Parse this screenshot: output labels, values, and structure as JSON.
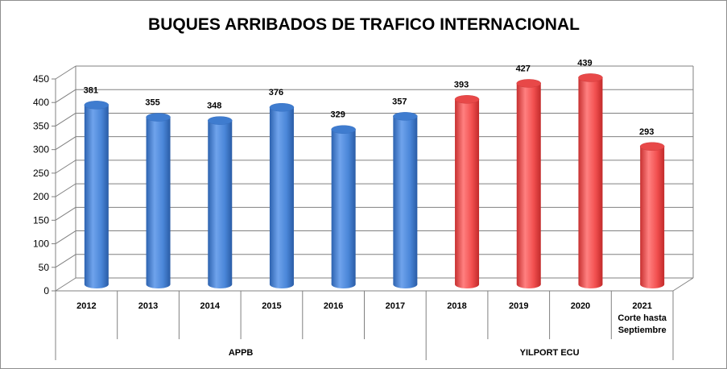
{
  "chart_data": {
    "type": "bar",
    "title": "BUQUES ARRIBADOS DE TRAFICO INTERNACIONAL",
    "categories": [
      "2012",
      "2013",
      "2014",
      "2015",
      "2016",
      "2017",
      "2018",
      "2019",
      "2020",
      "2021 Corte hasta Septiembre"
    ],
    "category_lines": [
      [
        "2012"
      ],
      [
        "2013"
      ],
      [
        "2014"
      ],
      [
        "2015"
      ],
      [
        "2016"
      ],
      [
        "2017"
      ],
      [
        "2018"
      ],
      [
        "2019"
      ],
      [
        "2020"
      ],
      [
        "2021",
        "Corte hasta",
        "Septiembre"
      ]
    ],
    "values": [
      381,
      355,
      348,
      376,
      329,
      357,
      393,
      427,
      439,
      293
    ],
    "groups": [
      {
        "label": "APPB",
        "start": 0,
        "end": 5
      },
      {
        "label": "YILPORT ECU",
        "start": 6,
        "end": 9
      }
    ],
    "ylim": [
      0,
      450
    ],
    "yticks": [
      0,
      50,
      100,
      150,
      200,
      250,
      300,
      350,
      400,
      450
    ],
    "grid": true,
    "data_labels": true,
    "colors": {
      "APPB": "#4a86d8",
      "YILPORT ECU": "#f25050"
    },
    "xlabel": "",
    "ylabel": ""
  }
}
